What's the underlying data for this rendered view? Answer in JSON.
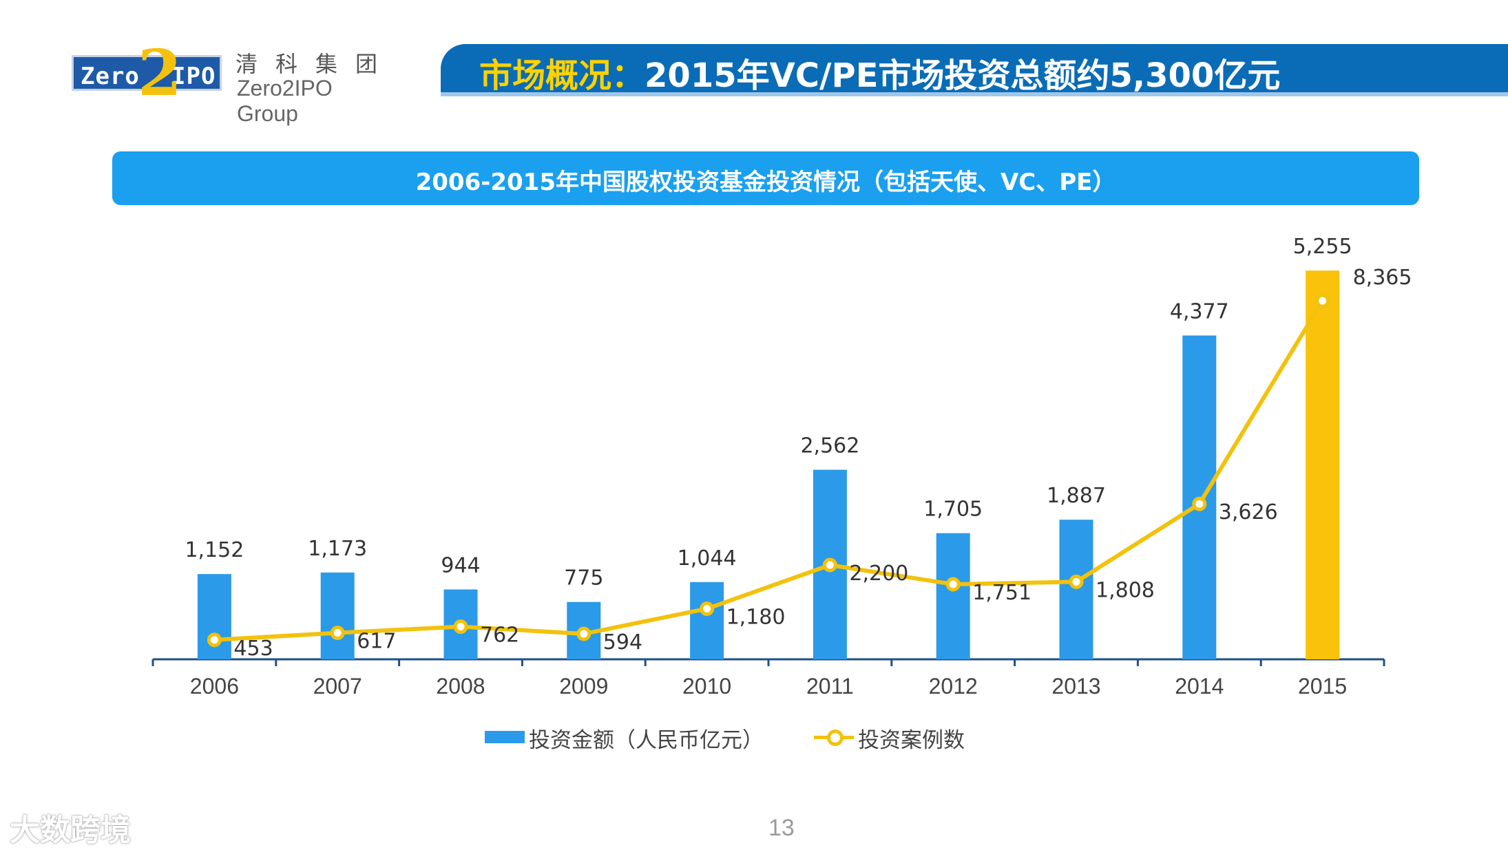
{
  "header": {
    "logo": {
      "zero": "Zero",
      "two": "2",
      "ipo": "IPO",
      "cn_name": "清科集团",
      "en_name": "Zero2IPO Group"
    },
    "title_highlight": "市场概况：",
    "title_main": "2015年VC/PE市场投资总额约5,300亿元"
  },
  "subtitle": "2006-2015年中国股权投资基金投资情况（包括天使、VC、PE）",
  "colors": {
    "bar": "#2b9ae8",
    "bar_highlight": "#fac20a",
    "line": "#f2c20c",
    "title_bar": "#0a6cb6",
    "subtitle_bar": "#1aa0ef",
    "title_highlight": "#ffd200"
  },
  "chart_data": {
    "type": "bar",
    "categories": [
      "2006",
      "2007",
      "2008",
      "2009",
      "2010",
      "2011",
      "2012",
      "2013",
      "2014",
      "2015"
    ],
    "series": [
      {
        "name": "投资金额（人民币亿元）",
        "type": "bar",
        "values": [
          1152,
          1173,
          944,
          775,
          1044,
          2562,
          1705,
          1887,
          4377,
          5255
        ],
        "highlight_index": 9
      },
      {
        "name": "投资案例数",
        "type": "line",
        "values": [
          453,
          617,
          762,
          594,
          1180,
          2200,
          1751,
          1808,
          3626,
          8365
        ]
      }
    ],
    "bar_ylim": [
      0,
      6000
    ],
    "line_ylim": [
      0,
      8800
    ],
    "grid": false,
    "legend_position": "bottom"
  },
  "page_number": "13",
  "watermark": "大数跨境"
}
